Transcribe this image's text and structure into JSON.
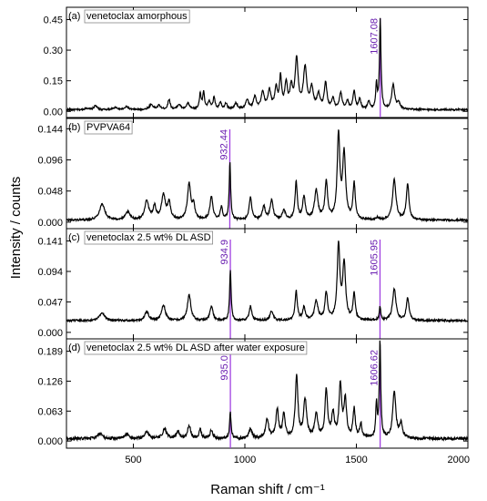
{
  "chart_data": {
    "type": "line",
    "xlabel": "Raman shift / cm⁻¹",
    "ylabel": "Intensity / counts",
    "xlim": [
      200,
      2000
    ],
    "x_ticks": [
      {
        "value": 500,
        "label": "500"
      },
      {
        "value": 1000,
        "label": "1000"
      },
      {
        "value": 1500,
        "label": "1500"
      },
      {
        "value": 2000,
        "label": "2000"
      }
    ],
    "colors": {
      "spectrum": "#000000",
      "marker": "#a040e0",
      "marker_text": "#6a1fb0"
    },
    "panels": [
      {
        "label": "(a)",
        "name": "venetoclax amorphous",
        "ylim": [
          -0.03,
          0.51
        ],
        "y_ticks": [
          {
            "value": 0.0,
            "label": "0.00"
          },
          {
            "value": 0.15,
            "label": "0.15"
          },
          {
            "value": 0.3,
            "label": "0.30"
          },
          {
            "value": 0.45,
            "label": "0.45"
          }
        ],
        "baseline": 0.008,
        "noise": 0.004,
        "markers": [
          {
            "x": 1607.08,
            "label": "1607.08"
          }
        ],
        "peaks": [
          [
            290,
            0.008,
            8
          ],
          [
            330,
            0.02,
            8
          ],
          [
            420,
            0.012,
            10
          ],
          [
            470,
            0.015,
            8
          ],
          [
            580,
            0.025,
            10
          ],
          [
            615,
            0.02,
            8
          ],
          [
            660,
            0.05,
            6
          ],
          [
            705,
            0.025,
            8
          ],
          [
            745,
            0.03,
            8
          ],
          [
            800,
            0.075,
            5
          ],
          [
            815,
            0.08,
            5
          ],
          [
            840,
            0.04,
            6
          ],
          [
            862,
            0.06,
            5
          ],
          [
            890,
            0.035,
            6
          ],
          [
            915,
            0.03,
            6
          ],
          [
            960,
            0.03,
            8
          ],
          [
            1010,
            0.045,
            8
          ],
          [
            1045,
            0.06,
            8
          ],
          [
            1080,
            0.08,
            8
          ],
          [
            1110,
            0.09,
            8
          ],
          [
            1140,
            0.1,
            7
          ],
          [
            1160,
            0.15,
            6
          ],
          [
            1185,
            0.12,
            7
          ],
          [
            1208,
            0.1,
            7
          ],
          [
            1232,
            0.24,
            8
          ],
          [
            1270,
            0.2,
            9
          ],
          [
            1300,
            0.1,
            8
          ],
          [
            1330,
            0.07,
            8
          ],
          [
            1362,
            0.13,
            7
          ],
          [
            1395,
            0.05,
            7
          ],
          [
            1430,
            0.08,
            7
          ],
          [
            1460,
            0.04,
            6
          ],
          [
            1490,
            0.09,
            6
          ],
          [
            1515,
            0.05,
            6
          ],
          [
            1555,
            0.04,
            6
          ],
          [
            1590,
            0.12,
            4
          ],
          [
            1607,
            0.44,
            4
          ],
          [
            1665,
            0.12,
            8
          ],
          [
            1690,
            0.03,
            8
          ]
        ]
      },
      {
        "label": "(b)",
        "name": "PVPVA64",
        "ylim": [
          -0.01,
          0.16
        ],
        "y_ticks": [
          {
            "value": 0.0,
            "label": "0.000"
          },
          {
            "value": 0.048,
            "label": "0.048"
          },
          {
            "value": 0.096,
            "label": "0.096"
          },
          {
            "value": 0.144,
            "label": "0.144"
          }
        ],
        "baseline": 0.003,
        "noise": 0.0015,
        "markers": [
          {
            "x": 932.44,
            "label": "932.44"
          }
        ],
        "peaks": [
          [
            360,
            0.025,
            14
          ],
          [
            475,
            0.012,
            12
          ],
          [
            560,
            0.03,
            10
          ],
          [
            595,
            0.02,
            8
          ],
          [
            635,
            0.038,
            10
          ],
          [
            660,
            0.025,
            8
          ],
          [
            750,
            0.055,
            9
          ],
          [
            770,
            0.02,
            7
          ],
          [
            850,
            0.035,
            8
          ],
          [
            895,
            0.02,
            6
          ],
          [
            933,
            0.088,
            4
          ],
          [
            1025,
            0.035,
            7
          ],
          [
            1085,
            0.02,
            8
          ],
          [
            1120,
            0.03,
            8
          ],
          [
            1175,
            0.015,
            8
          ],
          [
            1230,
            0.058,
            6
          ],
          [
            1265,
            0.035,
            7
          ],
          [
            1320,
            0.045,
            9
          ],
          [
            1365,
            0.058,
            7
          ],
          [
            1420,
            0.13,
            7
          ],
          [
            1445,
            0.1,
            8
          ],
          [
            1490,
            0.055,
            6
          ],
          [
            1595,
            0.003,
            6
          ],
          [
            1670,
            0.062,
            9
          ],
          [
            1730,
            0.055,
            7
          ]
        ]
      },
      {
        "label": "(c)",
        "name": "venetoclax 2.5 wt% DL ASD",
        "ylim": [
          -0.01,
          0.16
        ],
        "y_ticks": [
          {
            "value": 0.0,
            "label": "0.000"
          },
          {
            "value": 0.047,
            "label": "0.047"
          },
          {
            "value": 0.094,
            "label": "0.094"
          },
          {
            "value": 0.141,
            "label": "0.141"
          }
        ],
        "baseline": 0.018,
        "noise": 0.0015,
        "markers": [
          {
            "x": 934.9,
            "label": "934.9"
          },
          {
            "x": 1605.95,
            "label": "1605.95"
          }
        ],
        "peaks": [
          [
            360,
            0.012,
            14
          ],
          [
            560,
            0.014,
            10
          ],
          [
            635,
            0.024,
            10
          ],
          [
            750,
            0.04,
            9
          ],
          [
            850,
            0.022,
            8
          ],
          [
            935,
            0.078,
            4
          ],
          [
            1025,
            0.022,
            7
          ],
          [
            1120,
            0.015,
            8
          ],
          [
            1230,
            0.045,
            6
          ],
          [
            1265,
            0.02,
            7
          ],
          [
            1320,
            0.03,
            9
          ],
          [
            1365,
            0.042,
            7
          ],
          [
            1420,
            0.115,
            7
          ],
          [
            1445,
            0.085,
            8
          ],
          [
            1490,
            0.04,
            6
          ],
          [
            1606,
            0.02,
            4
          ],
          [
            1670,
            0.048,
            9
          ],
          [
            1730,
            0.035,
            7
          ]
        ]
      },
      {
        "label": "(d)",
        "name": "venetoclax 2.5 wt% DL ASD after water exposure",
        "ylim": [
          -0.015,
          0.215
        ],
        "y_ticks": [
          {
            "value": 0.0,
            "label": "0.000"
          },
          {
            "value": 0.063,
            "label": "0.063"
          },
          {
            "value": 0.126,
            "label": "0.126"
          },
          {
            "value": 0.189,
            "label": "0.189"
          }
        ],
        "baseline": 0.005,
        "noise": 0.003,
        "markers": [
          {
            "x": 935.05,
            "label": "935.05"
          },
          {
            "x": 1606.62,
            "label": "1606.62"
          }
        ],
        "peaks": [
          [
            350,
            0.01,
            12
          ],
          [
            470,
            0.01,
            10
          ],
          [
            560,
            0.015,
            10
          ],
          [
            640,
            0.02,
            10
          ],
          [
            700,
            0.015,
            8
          ],
          [
            750,
            0.028,
            8
          ],
          [
            800,
            0.02,
            6
          ],
          [
            850,
            0.018,
            7
          ],
          [
            935,
            0.055,
            4
          ],
          [
            1025,
            0.02,
            8
          ],
          [
            1100,
            0.04,
            8
          ],
          [
            1145,
            0.06,
            7
          ],
          [
            1175,
            0.05,
            7
          ],
          [
            1232,
            0.13,
            7
          ],
          [
            1270,
            0.08,
            8
          ],
          [
            1320,
            0.05,
            8
          ],
          [
            1365,
            0.1,
            7
          ],
          [
            1395,
            0.05,
            7
          ],
          [
            1428,
            0.11,
            7
          ],
          [
            1450,
            0.08,
            7
          ],
          [
            1490,
            0.06,
            6
          ],
          [
            1520,
            0.03,
            6
          ],
          [
            1590,
            0.07,
            4
          ],
          [
            1606,
            0.2,
            4
          ],
          [
            1670,
            0.1,
            8
          ],
          [
            1700,
            0.03,
            8
          ]
        ]
      }
    ]
  }
}
